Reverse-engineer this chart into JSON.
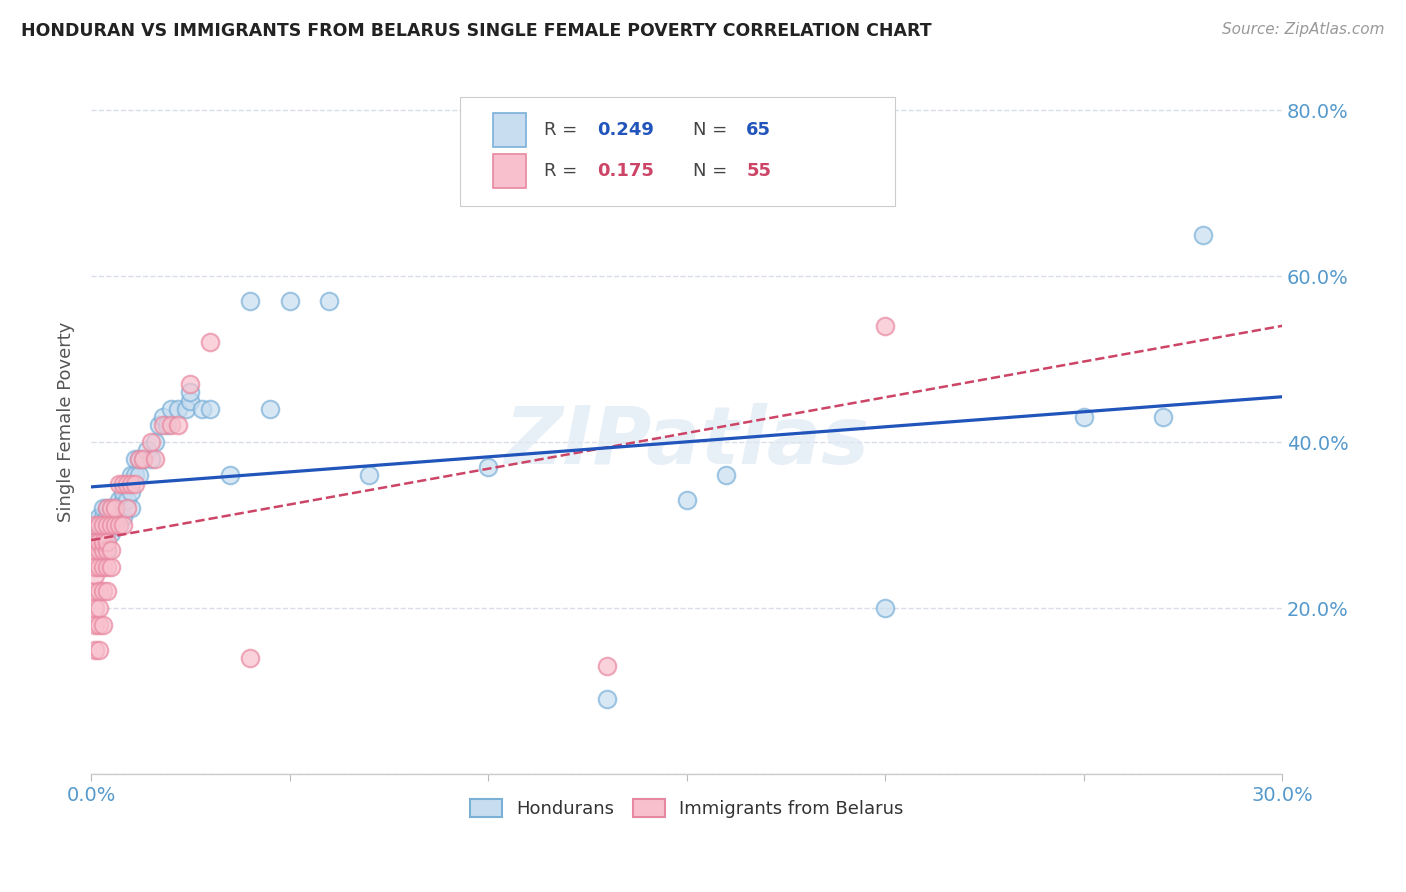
{
  "title": "HONDURAN VS IMMIGRANTS FROM BELARUS SINGLE FEMALE POVERTY CORRELATION CHART",
  "source": "Source: ZipAtlas.com",
  "ylabel": "Single Female Poverty",
  "xlim": [
    0.0,
    0.3
  ],
  "ylim": [
    0.0,
    0.85
  ],
  "xticks": [
    0.0,
    0.05,
    0.1,
    0.15,
    0.2,
    0.25,
    0.3
  ],
  "yticks": [
    0.0,
    0.2,
    0.4,
    0.6,
    0.8
  ],
  "honduran_color_fill": "#c8ddf0",
  "honduran_color_edge": "#7ab0d8",
  "belarus_color_fill": "#f8c0cc",
  "belarus_color_edge": "#e888a0",
  "honduran_line_color": "#2255bb",
  "belarus_line_color": "#cc4466",
  "grid_color": "#d8dde8",
  "background_color": "#ffffff",
  "legend_R_honduran": "0.249",
  "legend_N_honduran": "65",
  "legend_R_belarus": "0.175",
  "legend_N_belarus": "55",
  "watermark": "ZIPatlas",
  "axis_label_color": "#5599cc",
  "honduran_x": [
    0.001,
    0.001,
    0.002,
    0.002,
    0.002,
    0.003,
    0.003,
    0.003,
    0.003,
    0.003,
    0.004,
    0.004,
    0.004,
    0.004,
    0.004,
    0.005,
    0.005,
    0.005,
    0.005,
    0.006,
    0.006,
    0.006,
    0.007,
    0.007,
    0.007,
    0.008,
    0.008,
    0.008,
    0.009,
    0.009,
    0.01,
    0.01,
    0.01,
    0.011,
    0.011,
    0.012,
    0.012,
    0.013,
    0.014,
    0.015,
    0.016,
    0.017,
    0.018,
    0.019,
    0.02,
    0.022,
    0.024,
    0.025,
    0.025,
    0.028,
    0.03,
    0.035,
    0.04,
    0.045,
    0.05,
    0.06,
    0.07,
    0.1,
    0.13,
    0.15,
    0.16,
    0.2,
    0.25,
    0.27,
    0.28
  ],
  "honduran_y": [
    0.28,
    0.3,
    0.28,
    0.29,
    0.31,
    0.27,
    0.28,
    0.3,
    0.31,
    0.32,
    0.27,
    0.29,
    0.3,
    0.31,
    0.32,
    0.29,
    0.3,
    0.31,
    0.32,
    0.3,
    0.31,
    0.32,
    0.3,
    0.31,
    0.33,
    0.31,
    0.33,
    0.34,
    0.33,
    0.35,
    0.32,
    0.34,
    0.36,
    0.36,
    0.38,
    0.36,
    0.38,
    0.38,
    0.39,
    0.38,
    0.4,
    0.42,
    0.43,
    0.42,
    0.44,
    0.44,
    0.44,
    0.45,
    0.46,
    0.44,
    0.44,
    0.36,
    0.57,
    0.44,
    0.57,
    0.57,
    0.36,
    0.37,
    0.09,
    0.33,
    0.36,
    0.2,
    0.43,
    0.43,
    0.65
  ],
  "belarus_x": [
    0.001,
    0.001,
    0.001,
    0.001,
    0.001,
    0.001,
    0.001,
    0.001,
    0.001,
    0.002,
    0.002,
    0.002,
    0.002,
    0.002,
    0.002,
    0.002,
    0.002,
    0.003,
    0.003,
    0.003,
    0.003,
    0.003,
    0.003,
    0.004,
    0.004,
    0.004,
    0.004,
    0.004,
    0.004,
    0.005,
    0.005,
    0.005,
    0.005,
    0.006,
    0.006,
    0.007,
    0.007,
    0.008,
    0.008,
    0.009,
    0.009,
    0.01,
    0.011,
    0.012,
    0.013,
    0.015,
    0.016,
    0.018,
    0.02,
    0.022,
    0.025,
    0.03,
    0.04,
    0.2,
    0.13
  ],
  "belarus_y": [
    0.15,
    0.18,
    0.2,
    0.22,
    0.24,
    0.25,
    0.27,
    0.28,
    0.3,
    0.15,
    0.18,
    0.2,
    0.22,
    0.25,
    0.27,
    0.28,
    0.3,
    0.18,
    0.22,
    0.25,
    0.27,
    0.28,
    0.3,
    0.22,
    0.25,
    0.27,
    0.28,
    0.3,
    0.32,
    0.25,
    0.27,
    0.3,
    0.32,
    0.3,
    0.32,
    0.3,
    0.35,
    0.3,
    0.35,
    0.32,
    0.35,
    0.35,
    0.35,
    0.38,
    0.38,
    0.4,
    0.38,
    0.42,
    0.42,
    0.42,
    0.47,
    0.52,
    0.14,
    0.54,
    0.13
  ]
}
